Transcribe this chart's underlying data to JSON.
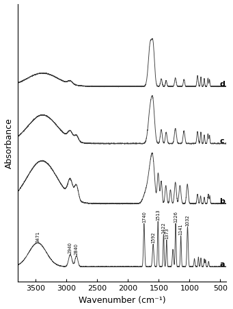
{
  "xlabel": "Wavenumber (cm⁻¹)",
  "ylabel": "Absorbance",
  "xlim": [
    3800,
    400
  ],
  "labels": [
    "a",
    "b",
    "c",
    "d"
  ],
  "xticks": [
    3500,
    3000,
    2500,
    2000,
    1500,
    1000,
    500
  ],
  "annotations_a": [
    {
      "text": "3471",
      "x": 3471
    },
    {
      "text": "2940",
      "x": 2940
    },
    {
      "text": "2840",
      "x": 2840
    },
    {
      "text": "1740",
      "x": 1740
    },
    {
      "text": "1592",
      "x": 1592
    },
    {
      "text": "1513",
      "x": 1513
    },
    {
      "text": "1422",
      "x": 1422
    },
    {
      "text": "1373",
      "x": 1373
    },
    {
      "text": "1226",
      "x": 1226
    },
    {
      "text": "1141",
      "x": 1141
    },
    {
      "text": "1032",
      "x": 1032
    }
  ],
  "line_color": "#3a3a3a",
  "background_color": "#ffffff",
  "figsize": [
    3.41,
    4.52
  ],
  "dpi": 100
}
